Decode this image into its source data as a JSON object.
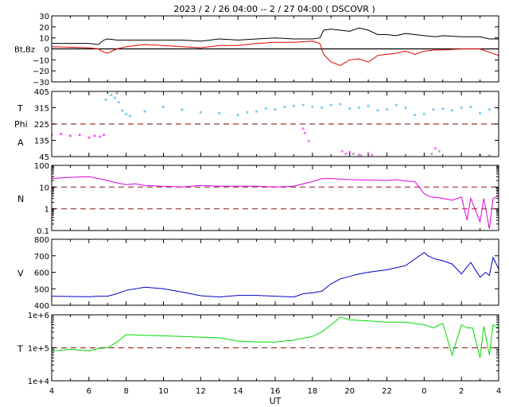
{
  "header": {
    "title": "2023 /  2 / 26   04:00 --  2 / 27   04:00 ( DSCOVR )"
  },
  "x_axis": {
    "label": "UT",
    "ticks": [
      "4",
      "6",
      "8",
      "10",
      "12",
      "14",
      "16",
      "18",
      "20",
      "22",
      "0",
      "2",
      "4"
    ]
  },
  "chart_data": [
    {
      "type": "line",
      "panel": "magnetic-field",
      "ylabel": "Bt,Bz",
      "ylim": [
        -30,
        30
      ],
      "yticks": [
        "30",
        "20",
        "10",
        "0",
        "−10",
        "−20",
        "−30"
      ],
      "reference_lines": [
        0
      ],
      "series": [
        {
          "key": "Bt",
          "color": "#000000",
          "x": [
            0,
            2,
            2.5,
            2.8,
            3,
            3.5,
            4,
            5,
            6,
            7,
            8,
            9,
            10,
            11,
            12,
            13,
            14,
            14.4,
            14.6,
            15,
            15.5,
            16,
            16.5,
            17,
            17.5,
            18,
            18.5,
            19,
            19.5,
            20,
            20.6,
            21,
            22,
            23,
            23.5,
            24
          ],
          "y": [
            5,
            5,
            4,
            8,
            9,
            8,
            8,
            8,
            8,
            8,
            7,
            9,
            8,
            9,
            10,
            9,
            9,
            10,
            17,
            18,
            17,
            16,
            19,
            17,
            13,
            13,
            12,
            14,
            13,
            12,
            11,
            12,
            11,
            11,
            9,
            9
          ]
        },
        {
          "key": "Bz",
          "color": "#e00000",
          "x": [
            0,
            2,
            2.5,
            2.8,
            3,
            3.5,
            4,
            5,
            6,
            7,
            8,
            9,
            10,
            11,
            12,
            13,
            14,
            14.4,
            14.6,
            15,
            15.5,
            16,
            16.5,
            17,
            17.5,
            18,
            18.5,
            19,
            19.5,
            20,
            20.6,
            21,
            22,
            23,
            23.5,
            24
          ],
          "y": [
            2,
            1,
            0,
            -3,
            -4,
            0,
            2,
            4,
            3,
            2,
            1,
            3,
            3,
            5,
            6,
            6,
            7,
            5,
            -5,
            -12,
            -15,
            -10,
            -9,
            -12,
            -6,
            -5,
            -4,
            -2,
            -5,
            -2,
            -1,
            -1,
            0,
            0,
            -3,
            -6
          ]
        }
      ]
    },
    {
      "type": "scatter",
      "panel": "theta-phi",
      "ylabel_top": "T",
      "ylabel_mid": "Phi",
      "ylabel_bottom": "A",
      "ylim": [
        45,
        405
      ],
      "yticks": [
        "405",
        "315",
        "225",
        "135",
        "45"
      ],
      "reference_lines": [
        225
      ],
      "series": [
        {
          "key": "Phi (early)",
          "color": "#ff55ff",
          "x": [
            0,
            0.5,
            1,
            1.5,
            2,
            2.3,
            2.6,
            2.8
          ],
          "y": [
            165,
            170,
            160,
            165,
            150,
            160,
            155,
            165
          ]
        },
        {
          "key": "Phi",
          "color": "#7fcdf0",
          "x": [
            2.9,
            3.2,
            3.4,
            3.6,
            3.8,
            4,
            4.2,
            5,
            6,
            7,
            8,
            9,
            10,
            10.5,
            11,
            11.5,
            12,
            12.5,
            13,
            13.5,
            14,
            14.5,
            15,
            15.5,
            16,
            16.5,
            17,
            17.5,
            18,
            18.5,
            19,
            19.5,
            20,
            20.5,
            21,
            21.5,
            22,
            22.5,
            23,
            23.5,
            24
          ],
          "y": [
            360,
            385,
            370,
            345,
            300,
            280,
            270,
            295,
            320,
            305,
            290,
            285,
            275,
            290,
            295,
            310,
            305,
            320,
            325,
            330,
            320,
            315,
            330,
            335,
            310,
            315,
            325,
            300,
            305,
            330,
            315,
            275,
            280,
            305,
            310,
            300,
            315,
            320,
            285,
            305,
            310
          ]
        },
        {
          "key": "Phi (low)",
          "color": "#ff77ff",
          "x": [
            13.5,
            13.6,
            13.8,
            15.6,
            15.8,
            16,
            16.5,
            17,
            17.2,
            20.6
          ],
          "y": [
            200,
            175,
            130,
            75,
            60,
            70,
            55,
            60,
            55,
            90
          ]
        },
        {
          "key": "Phi (grey)",
          "color": "#b0b0b0",
          "x": [
            3.5,
            16.2,
            16.6,
            17,
            20.4,
            20.8,
            23,
            23.5
          ],
          "y": [
            395,
            60,
            50,
            65,
            60,
            75,
            55,
            50
          ]
        }
      ]
    },
    {
      "type": "line",
      "panel": "density",
      "ylabel": "N",
      "yscale": "log",
      "ylim": [
        0.1,
        100
      ],
      "yticks": [
        "100",
        "10",
        "1",
        "0.1"
      ],
      "reference_lines": [
        10,
        1
      ],
      "series": [
        {
          "key": "N",
          "color": "#e000e0",
          "x": [
            0,
            1,
            2,
            2.8,
            3.2,
            3.6,
            4,
            4.5,
            5,
            6,
            7,
            8,
            9,
            10,
            11,
            12,
            13,
            14,
            14.5,
            15,
            16,
            17,
            18,
            18.5,
            19,
            19.5,
            20,
            20.2,
            20.4,
            21,
            21.5,
            22,
            22.3,
            22.5,
            23,
            23.2,
            23.5,
            23.7,
            24
          ],
          "y": [
            25,
            28,
            30,
            22,
            18,
            15,
            13,
            14,
            12,
            11,
            10,
            12,
            11,
            11,
            11,
            10,
            11,
            18,
            24,
            25,
            22,
            21,
            20,
            22,
            19,
            18,
            5,
            4,
            3.5,
            3,
            2.5,
            3.5,
            0.3,
            3,
            0.25,
            3,
            0.12,
            3,
            4
          ]
        }
      ]
    },
    {
      "type": "line",
      "panel": "speed",
      "ylabel": "V",
      "ylim": [
        400,
        800
      ],
      "yticks": [
        "800",
        "700",
        "600",
        "500",
        "400"
      ],
      "series": [
        {
          "key": "V",
          "color": "#0000cc",
          "x": [
            0,
            1,
            2,
            2.5,
            3,
            3.5,
            4,
            5,
            6,
            7,
            8,
            9,
            10,
            11,
            12,
            13,
            13.5,
            14,
            14.5,
            15,
            15.5,
            16,
            16.5,
            17,
            18,
            19,
            20,
            20.2,
            20.6,
            21,
            21.5,
            22,
            22.5,
            23,
            23.3,
            23.5,
            23.7,
            24
          ],
          "y": [
            455,
            453,
            452,
            455,
            455,
            470,
            490,
            510,
            500,
            480,
            458,
            450,
            460,
            460,
            455,
            450,
            470,
            475,
            485,
            530,
            560,
            575,
            590,
            600,
            615,
            640,
            720,
            700,
            680,
            670,
            650,
            590,
            660,
            570,
            600,
            580,
            690,
            620
          ]
        }
      ]
    },
    {
      "type": "line",
      "panel": "temperature",
      "ylabel": "T",
      "yscale": "log",
      "ylim": [
        10000,
        1000000
      ],
      "yticks": [
        "1e+6",
        "1e+5",
        "1e+4"
      ],
      "reference_lines": [
        100000
      ],
      "series": [
        {
          "key": "Tp",
          "color": "#00dd00",
          "x": [
            0,
            1,
            2,
            2.5,
            3,
            3.5,
            4,
            5,
            6,
            7,
            8,
            9,
            10,
            11,
            12,
            13,
            14,
            14.5,
            15,
            15.5,
            16,
            17,
            18,
            19,
            20,
            20.5,
            21,
            21.5,
            22,
            22.3,
            22.6,
            23,
            23.2,
            23.5,
            23.7,
            24
          ],
          "y": [
            80000,
            90000,
            80000,
            95000,
            100000,
            150000,
            250000,
            240000,
            230000,
            220000,
            210000,
            200000,
            160000,
            150000,
            150000,
            170000,
            220000,
            300000,
            500000,
            850000,
            700000,
            650000,
            600000,
            600000,
            500000,
            400000,
            550000,
            60000,
            500000,
            400000,
            400000,
            50000,
            450000,
            60000,
            500000,
            400000
          ]
        }
      ]
    }
  ]
}
